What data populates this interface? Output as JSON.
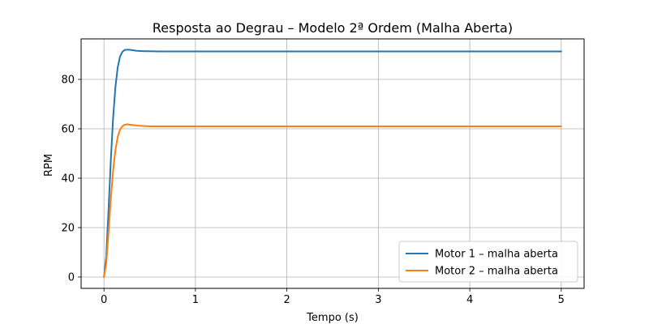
{
  "chart_data": {
    "type": "line",
    "title": "Resposta ao Degrau – Modelo 2ª Ordem (Malha Aberta)",
    "xlabel": "Tempo (s)",
    "ylabel": "RPM",
    "xlim": [
      -0.25,
      5.25
    ],
    "ylim": [
      -4.6,
      96.4
    ],
    "xticks": [
      0,
      1,
      2,
      3,
      4,
      5
    ],
    "yticks": [
      0,
      20,
      40,
      60,
      80
    ],
    "grid": true,
    "legend": "bottom-right",
    "series": [
      {
        "name": "Motor 1 – malha aberta",
        "color": "#1f77b4",
        "x": [
          0,
          0.025,
          0.05,
          0.075,
          0.1,
          0.125,
          0.15,
          0.175,
          0.2,
          0.225,
          0.25,
          0.275,
          0.3,
          0.35,
          0.4,
          0.45,
          0.5,
          0.6,
          0.7,
          0.8,
          1.0,
          1.5,
          2.0,
          3.0,
          4.0,
          5.0
        ],
        "y": [
          0,
          8.4,
          27.4,
          47.5,
          64.5,
          76.9,
          84.8,
          89.2,
          91.1,
          91.9,
          92.0,
          92.0,
          91.9,
          91.6,
          91.5,
          91.4,
          91.4,
          91.3,
          91.3,
          91.3,
          91.3,
          91.3,
          91.3,
          91.3,
          91.3,
          91.3
        ]
      },
      {
        "name": "Motor 2 – malha aberta",
        "color": "#ff7f0e",
        "x": [
          0,
          0.025,
          0.05,
          0.075,
          0.1,
          0.125,
          0.15,
          0.175,
          0.2,
          0.225,
          0.25,
          0.275,
          0.3,
          0.35,
          0.4,
          0.45,
          0.5,
          0.6,
          0.7,
          0.8,
          1.0,
          1.5,
          2.0,
          3.0,
          4.0,
          5.0
        ],
        "y": [
          0,
          5.6,
          18.3,
          31.7,
          43.1,
          51.4,
          56.7,
          59.6,
          61.0,
          61.6,
          61.8,
          61.7,
          61.6,
          61.4,
          61.2,
          61.1,
          61.0,
          61.0,
          61.0,
          61.0,
          61.0,
          61.0,
          61.0,
          61.0,
          61.0,
          61.0
        ]
      }
    ]
  }
}
